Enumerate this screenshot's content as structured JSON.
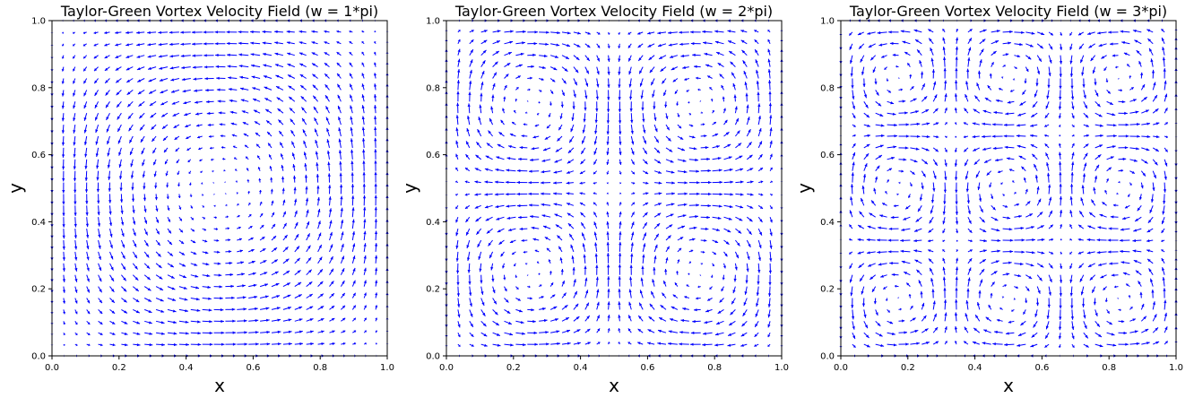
{
  "figure": {
    "panels": [
      {
        "title": "Taylor-Green Vortex Velocity Field (w = 1*pi)",
        "xlabel": "x",
        "ylabel": "y"
      },
      {
        "title": "Taylor-Green Vortex Velocity Field (w = 2*pi)",
        "xlabel": "x",
        "ylabel": "y"
      },
      {
        "title": "Taylor-Green Vortex Velocity Field (w = 3*pi)",
        "xlabel": "x",
        "ylabel": "y"
      }
    ]
  },
  "chart_data": [
    {
      "type": "quiver",
      "title": "Taylor-Green Vortex Velocity Field (w = 1*pi)",
      "xlabel": "x",
      "ylabel": "y",
      "xlim": [
        0,
        1
      ],
      "ylim": [
        0,
        1
      ],
      "xticks": [
        "0.0",
        "0.2",
        "0.4",
        "0.6",
        "0.8",
        "1.0"
      ],
      "yticks": [
        "0.0",
        "0.2",
        "0.4",
        "0.6",
        "0.8",
        "1.0"
      ],
      "w": 1,
      "field": {
        "u": "sin(w*pi*x)*cos(w*pi*y)",
        "v": "-cos(w*pi*x)*sin(w*pi*y)"
      },
      "grid_points": 30,
      "arrow_color": "#0000ff",
      "grid": false
    },
    {
      "type": "quiver",
      "title": "Taylor-Green Vortex Velocity Field (w = 2*pi)",
      "xlabel": "x",
      "ylabel": "y",
      "xlim": [
        0,
        1
      ],
      "ylim": [
        0,
        1
      ],
      "xticks": [
        "0.0",
        "0.2",
        "0.4",
        "0.6",
        "0.8",
        "1.0"
      ],
      "yticks": [
        "0.0",
        "0.2",
        "0.4",
        "0.6",
        "0.8",
        "1.0"
      ],
      "w": 2,
      "field": {
        "u": "sin(w*pi*x)*cos(w*pi*y)",
        "v": "-cos(w*pi*x)*sin(w*pi*y)"
      },
      "grid_points": 30,
      "arrow_color": "#0000ff",
      "grid": false
    },
    {
      "type": "quiver",
      "title": "Taylor-Green Vortex Velocity Field (w = 3*pi)",
      "xlabel": "x",
      "ylabel": "y",
      "xlim": [
        0,
        1
      ],
      "ylim": [
        0,
        1
      ],
      "xticks": [
        "0.0",
        "0.2",
        "0.4",
        "0.6",
        "0.8",
        "1.0"
      ],
      "yticks": [
        "0.0",
        "0.2",
        "0.4",
        "0.6",
        "0.8",
        "1.0"
      ],
      "w": 3,
      "field": {
        "u": "sin(w*pi*x)*cos(w*pi*y)",
        "v": "-cos(w*pi*x)*sin(w*pi*y)"
      },
      "grid_points": 30,
      "arrow_color": "#0000ff",
      "grid": false
    }
  ]
}
